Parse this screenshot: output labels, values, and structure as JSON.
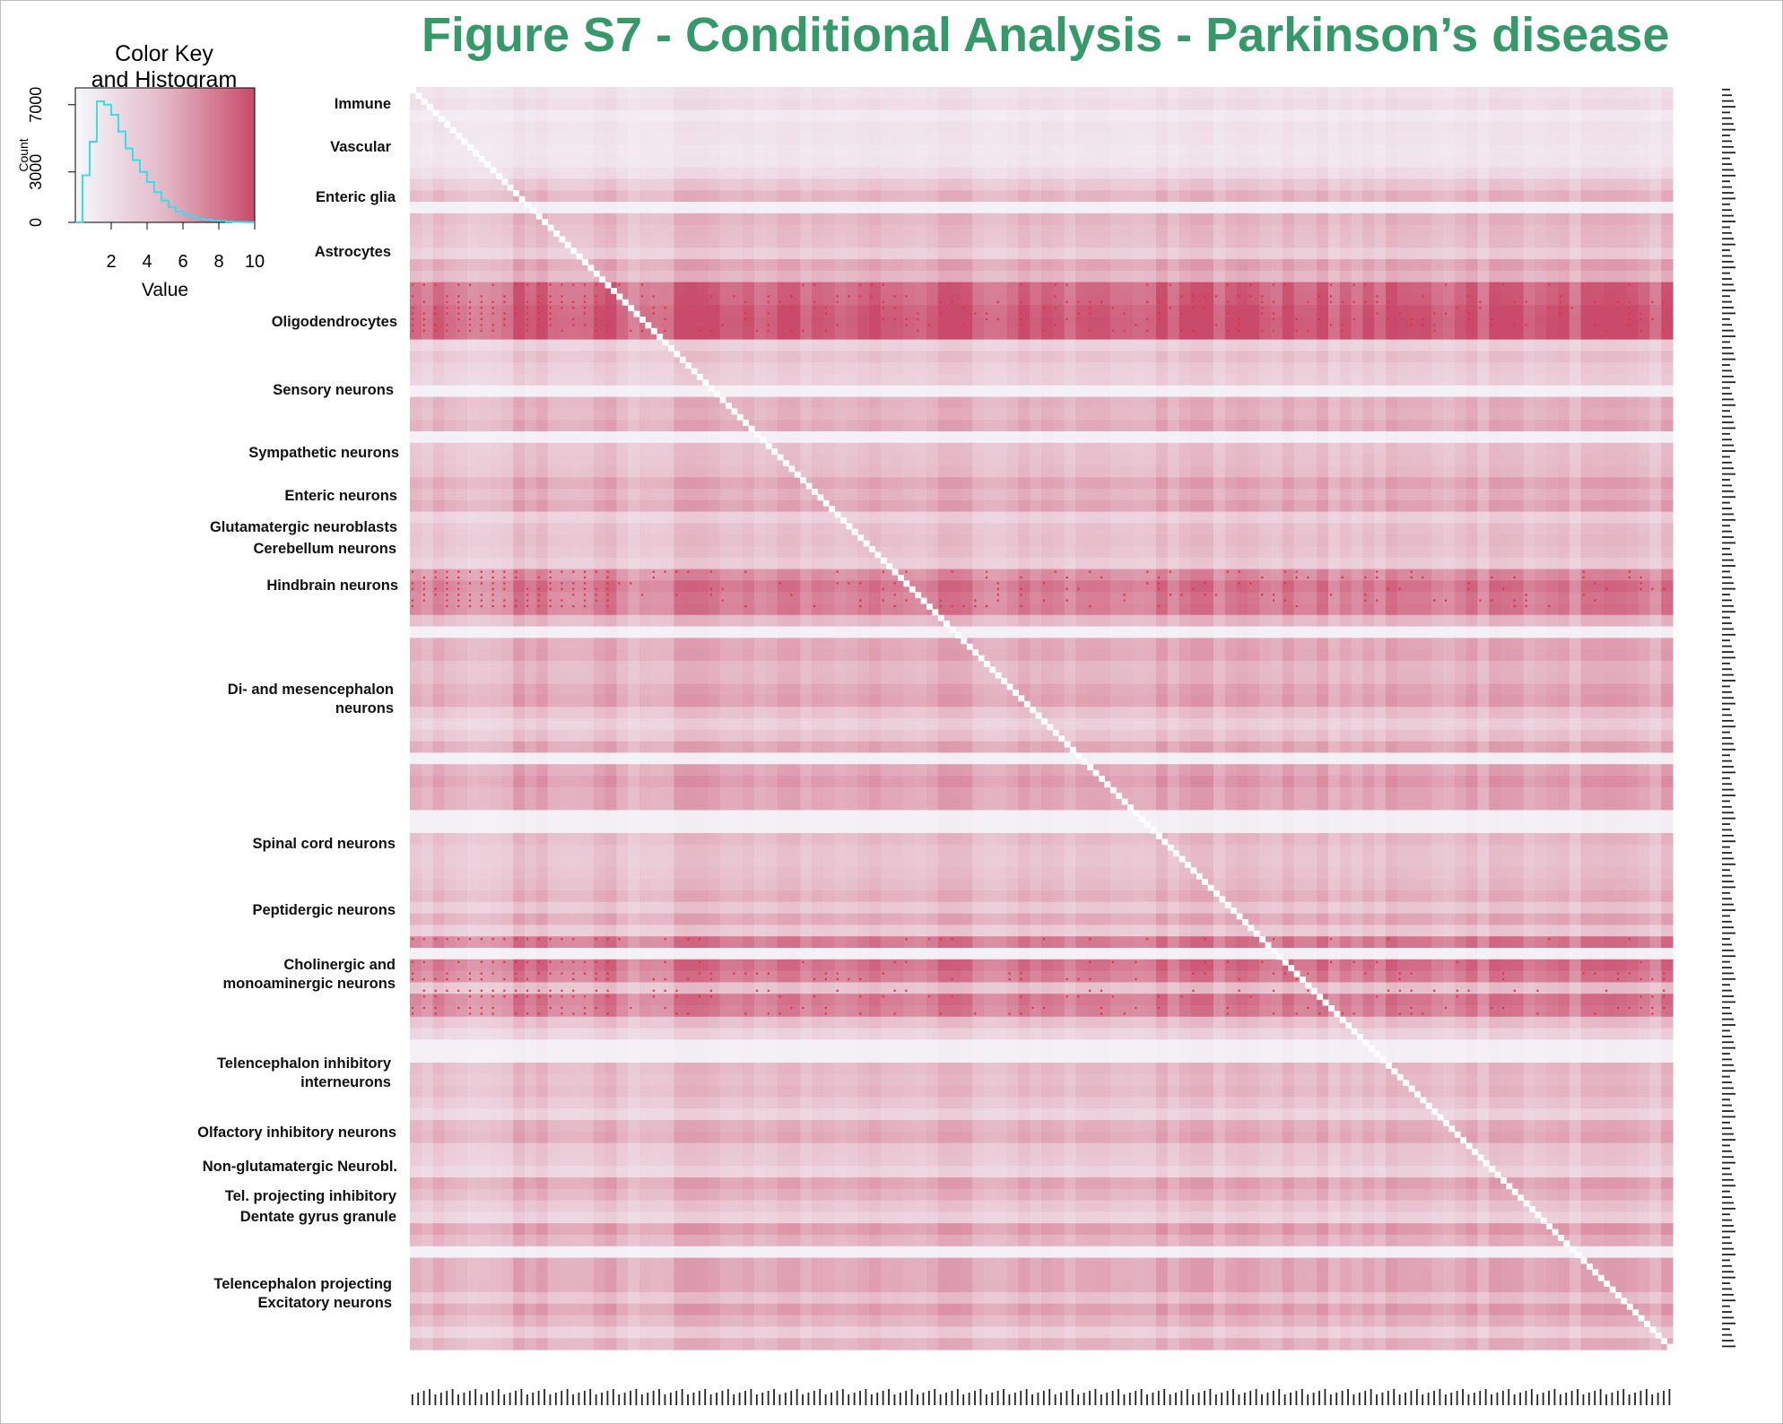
{
  "title": "Figure S7 - Conditional Analysis - Parkinson’s disease",
  "colors": {
    "title": "#36996a",
    "low": "#f6f8fc",
    "high": "#c94a6a",
    "significant_dot": "#e8303e",
    "histogram_line": "#33e0f0",
    "diagonal": "#ffffff"
  },
  "color_key": {
    "title": "Color Key",
    "subtitle": "and Histogram",
    "xlabel": "Value",
    "ylabel": "Count",
    "x_ticks": [
      "2",
      "4",
      "6",
      "8",
      "10"
    ],
    "y_ticks": [
      "0",
      "3000",
      "7000"
    ]
  },
  "row_groups": [
    {
      "id": "immune",
      "lines": [
        "Immune"
      ]
    },
    {
      "id": "vascular",
      "lines": [
        "Vascular"
      ]
    },
    {
      "id": "enteric-glia",
      "lines": [
        "Enteric glia"
      ]
    },
    {
      "id": "astrocytes",
      "lines": [
        "Astrocytes"
      ]
    },
    {
      "id": "oligodendrocytes",
      "lines": [
        "Oligodendrocytes"
      ]
    },
    {
      "id": "sensory-neurons",
      "lines": [
        "Sensory neurons"
      ]
    },
    {
      "id": "sympathetic-neurons",
      "lines": [
        "Sympathetic neurons"
      ]
    },
    {
      "id": "enteric-neurons",
      "lines": [
        "Enteric neurons"
      ]
    },
    {
      "id": "glutamatergic-neuroblasts",
      "lines": [
        "Glutamatergic neuroblasts"
      ]
    },
    {
      "id": "cerebellum-neurons",
      "lines": [
        "Cerebellum neurons"
      ]
    },
    {
      "id": "hindbrain-neurons",
      "lines": [
        "Hindbrain neurons"
      ]
    },
    {
      "id": "di-mesencephalon-neurons",
      "lines": [
        "Di- and mesencephalon",
        "neurons"
      ]
    },
    {
      "id": "spinal-cord-neurons",
      "lines": [
        "Spinal cord neurons"
      ]
    },
    {
      "id": "peptidergic-neurons",
      "lines": [
        "Peptidergic neurons"
      ]
    },
    {
      "id": "cholinergic-monoaminergic-neurons",
      "lines": [
        "Cholinergic and",
        "monoaminergic neurons"
      ]
    },
    {
      "id": "telencephalon-inhibitory-interneurons",
      "lines": [
        "Telencephalon inhibitory",
        "interneurons"
      ]
    },
    {
      "id": "olfactory-inhibitory-neurons",
      "lines": [
        "Olfactory inhibitory neurons"
      ]
    },
    {
      "id": "non-glutamatergic-neuroblasts",
      "lines": [
        "Non-glutamatergic Neurobl."
      ]
    },
    {
      "id": "tel-projecting-inhibitory",
      "lines": [
        "Tel. projecting inhibitory"
      ]
    },
    {
      "id": "dentate-gyrus-granule",
      "lines": [
        "Dentate gyrus granule"
      ]
    },
    {
      "id": "telencephalon-projecting-excitatory-neurons",
      "lines": [
        "Telencephalon projecting",
        "Excitatory neurons"
      ]
    }
  ],
  "chart_data": [
    {
      "type": "histogram",
      "title": "Color Key",
      "subtitle": "and Histogram",
      "xlabel": "Value",
      "ylabel": "Count",
      "xlim": [
        0,
        10
      ],
      "ylim": [
        0,
        8000
      ],
      "bin_width": 0.4,
      "bins_start": [
        0.0,
        0.4,
        0.8,
        1.2,
        1.6,
        2.0,
        2.4,
        2.8,
        3.2,
        3.6,
        4.0,
        4.4,
        4.8,
        5.2,
        5.6,
        6.0,
        6.4,
        6.8,
        7.2,
        7.6,
        8.0,
        8.4,
        8.8,
        9.2,
        9.6
      ],
      "counts": [
        0,
        2800,
        4800,
        7200,
        7000,
        6400,
        5400,
        4400,
        3700,
        3000,
        2400,
        1800,
        1300,
        900,
        650,
        450,
        320,
        230,
        160,
        110,
        80,
        50,
        30,
        20,
        10
      ]
    },
    {
      "type": "heatmap",
      "title": "Figure S7 - Conditional Analysis - Parkinson’s disease",
      "n_rows": 220,
      "n_cols": 220,
      "value_range": [
        0,
        10
      ],
      "row_groups_in_order": [
        "Immune",
        "Vascular",
        "Enteric glia",
        "Astrocytes",
        "Oligodendrocytes",
        "Sensory neurons",
        "Sympathetic neurons",
        "Enteric neurons",
        "Glutamatergic neuroblasts",
        "Cerebellum neurons",
        "Hindbrain neurons",
        "Di- and mesencephalon neurons",
        "Spinal cord neurons",
        "Peptidergic neurons",
        "Cholinergic and monoaminergic neurons",
        "Telencephalon inhibitory interneurons",
        "Olfactory inhibitory neurons",
        "Non-glutamatergic Neurobl.",
        "Tel. projecting inhibitory",
        "Dentate gyrus granule",
        "Telencephalon projecting Excitatory neurons"
      ],
      "high_value_row_bands": [
        "Oligodendrocytes",
        "Hindbrain neurons",
        "Di- and mesencephalon neurons",
        "Cholinergic and monoaminergic neurons",
        "Dentate gyrus granule",
        "Telencephalon projecting Excitatory neurons"
      ],
      "diagonal": "white (self-conditioning)",
      "significance_marker": "red dots"
    }
  ]
}
